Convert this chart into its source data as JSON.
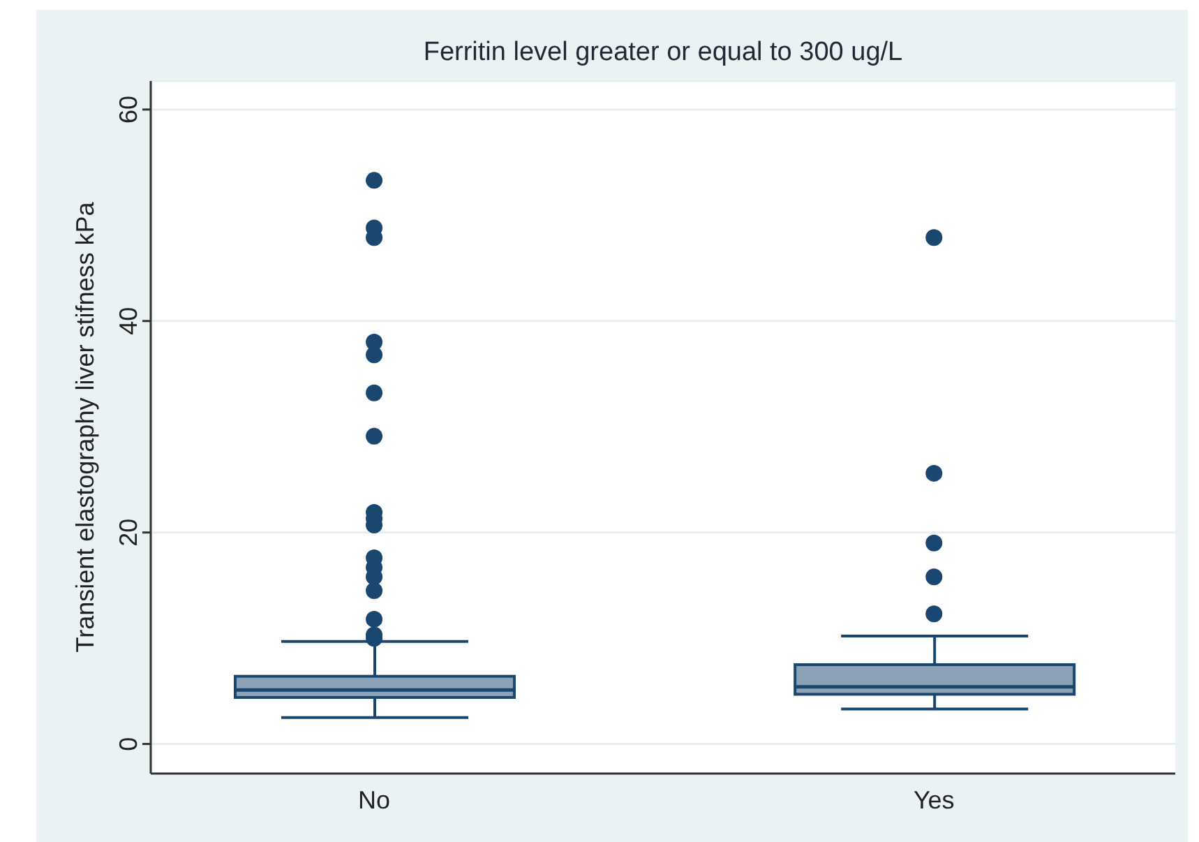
{
  "chart_data": {
    "type": "box",
    "title": "Ferritin level greater or equal to 300 ug/L",
    "ylabel": "Transient elastography liver stifness kPa",
    "categories": [
      "No",
      "Yes"
    ],
    "color": "#1a476f",
    "boxes": [
      {
        "low": 2.5,
        "q1": 4.4,
        "median": 5.1,
        "q3": 6.4,
        "high": 9.7,
        "outliers": [
          53.3,
          48.8,
          47.9,
          38.0,
          36.8,
          33.2,
          29.1,
          21.9,
          21.3,
          20.7,
          17.6,
          16.7,
          15.8,
          14.5,
          11.8,
          10.3,
          10.0
        ]
      },
      {
        "low": 3.3,
        "q1": 4.7,
        "median": 5.4,
        "q3": 7.5,
        "high": 10.2,
        "outliers": [
          47.9,
          25.6,
          19.0,
          15.8,
          12.3
        ]
      }
    ],
    "ylim": [
      -2.8,
      62.7
    ],
    "yticks": [
      0,
      20,
      40,
      60
    ],
    "grid": "y"
  }
}
